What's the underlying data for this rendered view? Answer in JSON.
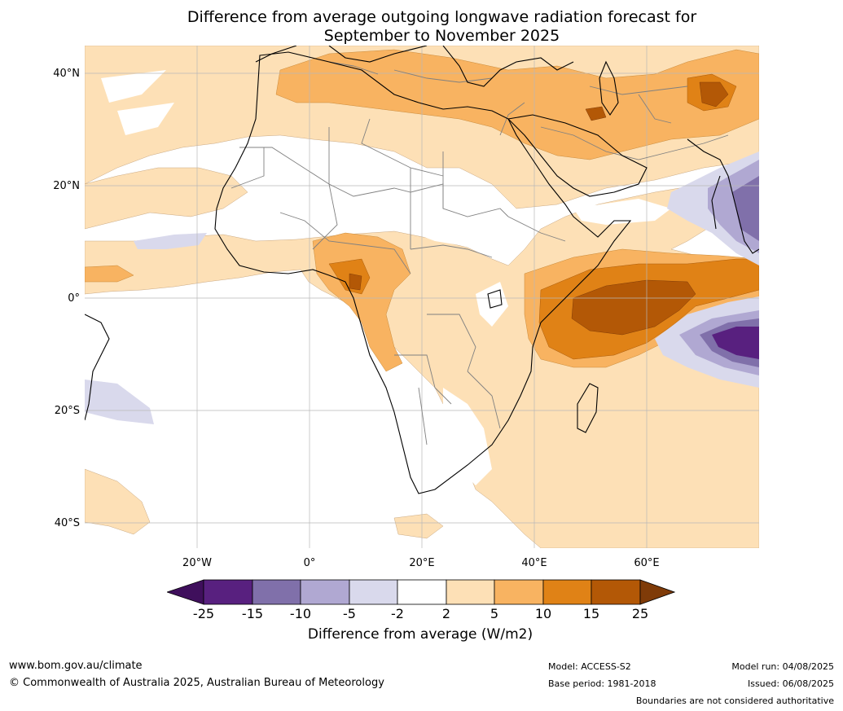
{
  "title_line1": "Difference from average outgoing longwave radiation forecast for",
  "title_line2": "September to November 2025",
  "lat_labels": [
    "40°N",
    "20°N",
    "0°",
    "20°S",
    "40°S"
  ],
  "lon_labels": [
    "20°W",
    "0°",
    "20°E",
    "40°E",
    "60°E"
  ],
  "colorbar": {
    "ticks": [
      "-25",
      "-15",
      "-10",
      "-5",
      "-2",
      "2",
      "5",
      "10",
      "15",
      "25"
    ],
    "colors": [
      "#3f0f5c",
      "#58207f",
      "#8070aa",
      "#b0a8d2",
      "#d9d9ec",
      "#ffffff",
      "#fde0b6",
      "#f8b361",
      "#e08216",
      "#b35806",
      "#7f3b08"
    ],
    "label": "Difference from average (W/m2)"
  },
  "footer": {
    "website": "www.bom.gov.au/climate",
    "copyright": "© Commonwealth of Australia 2025, Australian Bureau of Meteorology",
    "model": "Model: ACCESS-S2",
    "base_period": "Base period: 1981-2018",
    "model_run": "Model run: 04/08/2025",
    "issued": "Issued: 06/08/2025",
    "disclaimer": "Boundaries are not considered authoritative"
  }
}
